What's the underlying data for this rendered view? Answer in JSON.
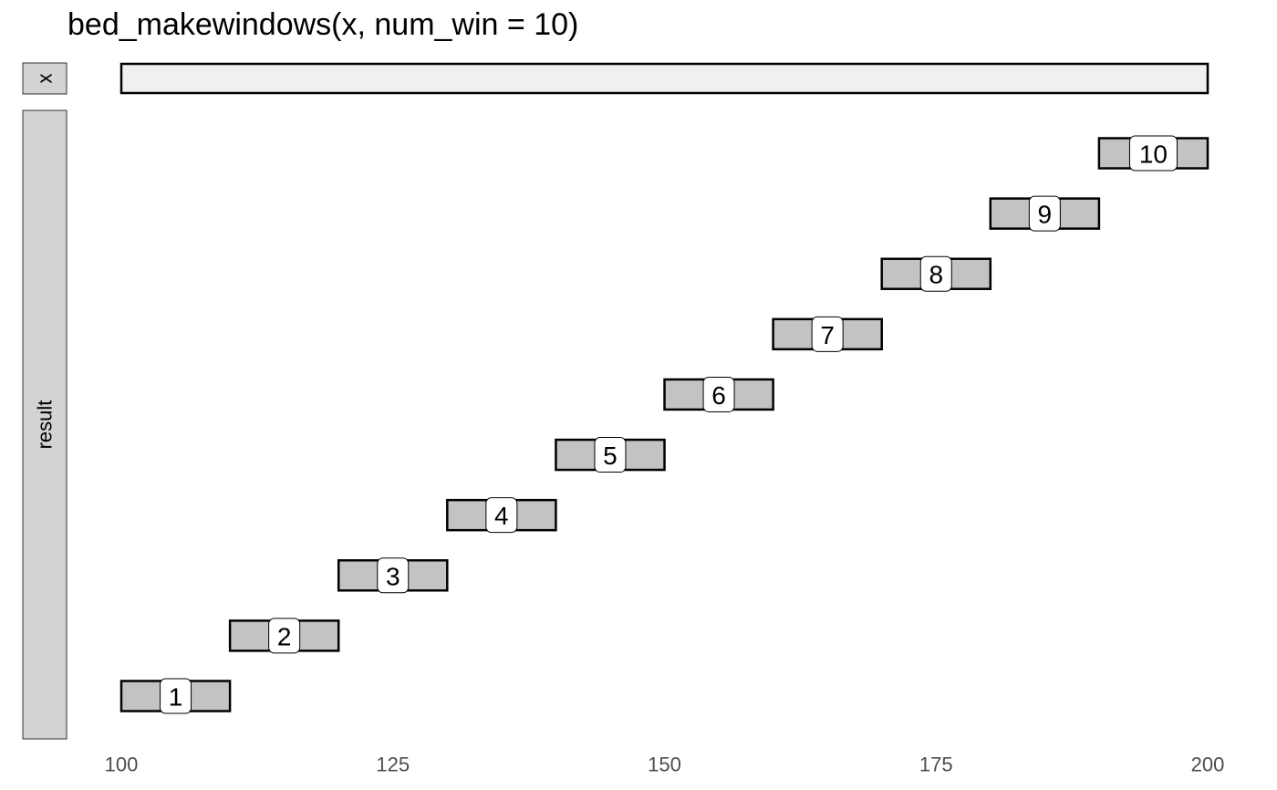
{
  "chart_data": {
    "type": "interval",
    "title": "bed_makewindows(x, num_win = 10)",
    "xlabel": "",
    "ylabel": "",
    "xlim": [
      100,
      200
    ],
    "x_ticks": [
      100,
      125,
      150,
      175,
      200
    ],
    "grid": false,
    "panels": [
      {
        "name": "x",
        "intervals": [
          {
            "start": 100,
            "end": 200,
            "label": "",
            "fill": "#f0f0f0"
          }
        ]
      },
      {
        "name": "result",
        "intervals": [
          {
            "start": 100,
            "end": 110,
            "label": "1",
            "fill": "#c3c3c3"
          },
          {
            "start": 110,
            "end": 120,
            "label": "2",
            "fill": "#c3c3c3"
          },
          {
            "start": 120,
            "end": 130,
            "label": "3",
            "fill": "#c3c3c3"
          },
          {
            "start": 130,
            "end": 140,
            "label": "4",
            "fill": "#c3c3c3"
          },
          {
            "start": 140,
            "end": 150,
            "label": "5",
            "fill": "#c3c3c3"
          },
          {
            "start": 150,
            "end": 160,
            "label": "6",
            "fill": "#c3c3c3"
          },
          {
            "start": 160,
            "end": 170,
            "label": "7",
            "fill": "#c3c3c3"
          },
          {
            "start": 170,
            "end": 180,
            "label": "8",
            "fill": "#c3c3c3"
          },
          {
            "start": 180,
            "end": 190,
            "label": "9",
            "fill": "#c3c3c3"
          },
          {
            "start": 190,
            "end": 200,
            "label": "10",
            "fill": "#c3c3c3"
          }
        ]
      }
    ],
    "colors": {
      "strip_fill": "#d3d3d3",
      "label_box": "#ffffff",
      "stroke": "#000000"
    }
  }
}
